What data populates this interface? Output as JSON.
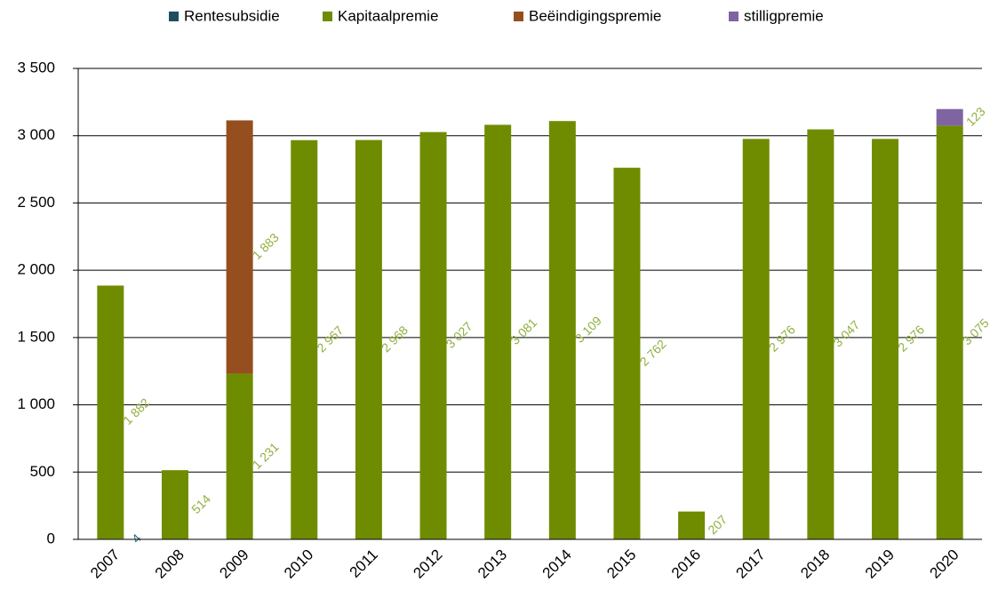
{
  "chart_data": {
    "type": "stacked-bar",
    "categories": [
      "2007",
      "2008",
      "2009",
      "2010",
      "2011",
      "2012",
      "2013",
      "2014",
      "2015",
      "2016",
      "2017",
      "2018",
      "2019",
      "2020"
    ],
    "series": [
      {
        "name": "Rentesubsidie",
        "color": "#1f4e5f",
        "label_color": "#2e6a80",
        "values": [
          4,
          null,
          null,
          null,
          null,
          null,
          null,
          null,
          null,
          null,
          null,
          null,
          null,
          null
        ]
      },
      {
        "name": "Kapitaalpremie",
        "color": "#6f8c00",
        "label_color": "#8fb040",
        "values": [
          1882,
          514,
          1231,
          2967,
          2968,
          3027,
          3081,
          3109,
          2762,
          207,
          2976,
          3047,
          2976,
          3075
        ],
        "value_labels": [
          "1 882",
          "514",
          "1 231",
          "2 967",
          "2 968",
          "3 027",
          "3 081",
          "3 109",
          "2 762",
          "207",
          "2 976",
          "3 047",
          "2 976",
          "3 075"
        ]
      },
      {
        "name": "Beëindigingspremie",
        "color": "#954f1f",
        "label_color": "#8fb040",
        "values": [
          null,
          null,
          1883,
          null,
          null,
          null,
          null,
          null,
          null,
          null,
          null,
          null,
          null,
          null
        ],
        "value_labels": [
          null,
          null,
          "1 883",
          null,
          null,
          null,
          null,
          null,
          null,
          null,
          null,
          null,
          null,
          null
        ]
      },
      {
        "name": "stilligpremie",
        "color": "#8064a2",
        "label_color": "#8fb040",
        "values": [
          null,
          null,
          null,
          null,
          null,
          null,
          null,
          null,
          null,
          null,
          null,
          null,
          null,
          123
        ]
      }
    ],
    "ylim": [
      0,
      3500
    ],
    "yticks": [
      0,
      500,
      {
        "value": 1000,
        "label": "1 000"
      },
      {
        "value": 1500,
        "label": "1 500"
      },
      {
        "value": 2000,
        "label": "2 000"
      },
      {
        "value": 2500,
        "label": "2 500"
      },
      {
        "value": 3000,
        "label": "3 000"
      },
      {
        "value": 3500,
        "label": "3 500"
      }
    ],
    "grid": true,
    "legend": "top"
  }
}
